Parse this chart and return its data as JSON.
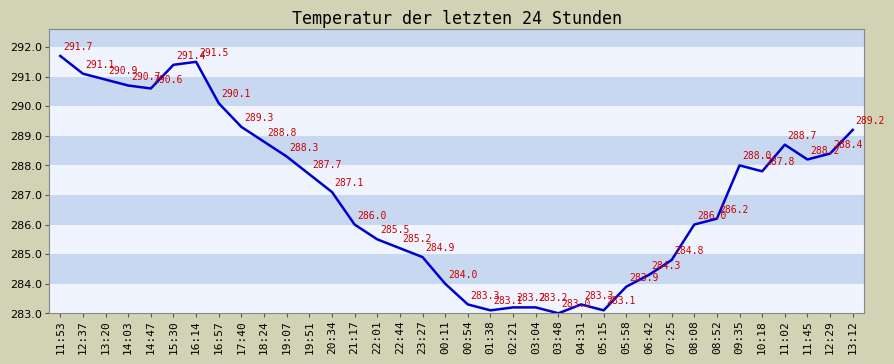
{
  "title": "Temperatur der letzten 24 Stunden",
  "times": [
    "11:53",
    "12:37",
    "13:20",
    "14:03",
    "14:47",
    "15:30",
    "16:14",
    "16:57",
    "17:40",
    "18:24",
    "19:07",
    "19:51",
    "20:34",
    "21:17",
    "22:01",
    "22:44",
    "23:27",
    "00:11",
    "00:54",
    "01:38",
    "02:21",
    "03:04",
    "03:48",
    "04:31",
    "05:15",
    "05:58",
    "06:42",
    "07:25",
    "08:08",
    "08:52",
    "09:35",
    "10:18",
    "11:02",
    "11:45",
    "12:29",
    "13:12"
  ],
  "values": [
    291.7,
    291.1,
    290.9,
    290.7,
    290.6,
    291.4,
    291.5,
    290.1,
    289.3,
    288.8,
    288.3,
    287.7,
    287.1,
    286.0,
    285.5,
    285.2,
    284.9,
    284.0,
    283.3,
    283.1,
    283.2,
    283.2,
    283.0,
    283.3,
    283.1,
    283.9,
    284.3,
    284.8,
    286.0,
    286.2,
    288.0,
    287.8,
    288.7,
    288.2,
    288.4,
    289.2
  ],
  "line_color": "#0000cc",
  "label_color": "#cc0000",
  "background_color": "#d2d2b4",
  "plot_bg_color_blue": "#c8d8f0",
  "plot_bg_color_white": "#f0f4ff",
  "ylim_min": 283.0,
  "ylim_max": 292.6,
  "title_fontsize": 12,
  "label_fontsize": 7,
  "tick_fontsize": 8,
  "line_width": 1.8
}
